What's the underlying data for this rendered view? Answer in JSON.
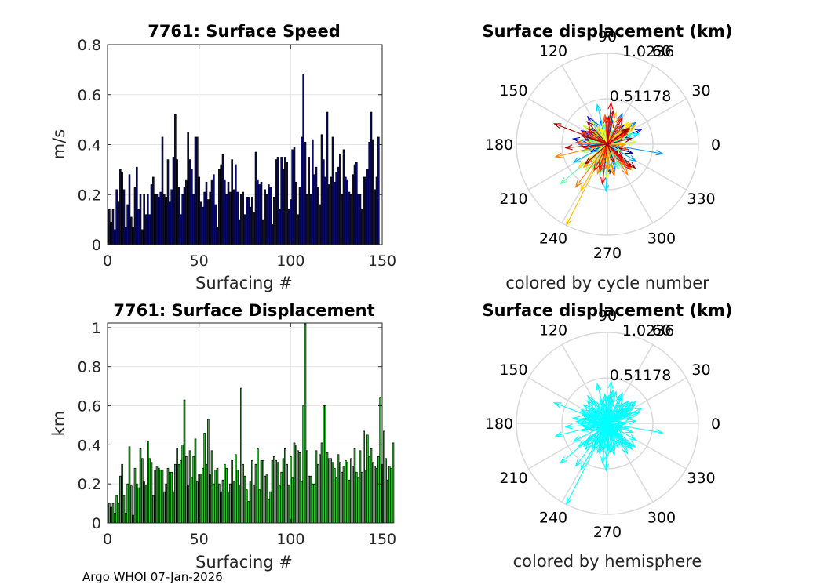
{
  "chart_data": [
    {
      "type": "bar",
      "title": "7761: Surface Speed",
      "xlabel": "Surfacing #",
      "ylabel": "m/s",
      "xlim": [
        0,
        150
      ],
      "ylim": [
        0,
        0.8
      ],
      "xticks": [
        "0",
        "50",
        "100",
        "150"
      ],
      "yticks": [
        "0",
        "0.2",
        "0.4",
        "0.6",
        "0.8"
      ],
      "grid": true,
      "bar_color": "#0a0a78",
      "values": [
        0.14,
        0.09,
        0.14,
        0.06,
        0.22,
        0.17,
        0.3,
        0.29,
        0.22,
        0.07,
        0.16,
        0.28,
        0.11,
        0.07,
        0.23,
        0.31,
        0.14,
        0.2,
        0.06,
        0.2,
        0.12,
        0.2,
        0.12,
        0.24,
        0.27,
        0.2,
        0.2,
        0.19,
        0.21,
        0.43,
        0.2,
        0.19,
        0.34,
        0.17,
        0.22,
        0.35,
        0.52,
        0.34,
        0.23,
        0.12,
        0.2,
        0.23,
        0.26,
        0.45,
        0.34,
        0.3,
        0.2,
        0.43,
        0.43,
        0.27,
        0.17,
        0.15,
        0.21,
        0.25,
        0.18,
        0.21,
        0.26,
        0.28,
        0.16,
        0.07,
        0.3,
        0.32,
        0.36,
        0.26,
        0.2,
        0.25,
        0.21,
        0.34,
        0.22,
        0.32,
        0.21,
        0.1,
        0.2,
        0.21,
        0.12,
        0.19,
        0.19,
        0.15,
        0.19,
        0.13,
        0.37,
        0.26,
        0.24,
        0.25,
        0.1,
        0.22,
        0.2,
        0.24,
        0.23,
        0.08,
        0.19,
        0.34,
        0.35,
        0.14,
        0.35,
        0.3,
        0.35,
        0.33,
        0.14,
        0.18,
        0.38,
        0.39,
        0.25,
        0.12,
        0.23,
        0.43,
        0.68,
        0.41,
        0.2,
        0.35,
        0.2,
        0.42,
        0.28,
        0.31,
        0.23,
        0.16,
        0.44,
        0.34,
        0.27,
        0.53,
        0.24,
        0.27,
        0.43,
        0.25,
        0.29,
        0.31,
        0.36,
        0.2,
        0.38,
        0.27,
        0.26,
        0.21,
        0.2,
        0.28,
        0.32,
        0.33,
        0.2,
        0.2,
        0.14,
        0.27,
        0.27,
        0.3,
        0.41,
        0.53,
        0.42,
        0.22,
        0.27,
        0.43
      ]
    },
    {
      "type": "polar-vector",
      "title": "Surface displacement (km)",
      "rlim": [
        0,
        1.0236
      ],
      "rticks": [
        "0.51178",
        "1.0236"
      ],
      "angle_ticks": [
        "0",
        "30",
        "60",
        "90",
        "120",
        "150",
        "180",
        "210",
        "240",
        "270",
        "300",
        "330"
      ],
      "caption": "colored by cycle number",
      "colormap": "jet"
    },
    {
      "type": "bar",
      "title": "7761: Surface Displacement",
      "xlabel": "Surfacing #",
      "ylabel": "km",
      "xlim": [
        0,
        150
      ],
      "ylim": [
        0,
        1.0236
      ],
      "xticks": [
        "0",
        "50",
        "100",
        "150"
      ],
      "yticks": [
        "0",
        "0.2",
        "0.4",
        "0.6",
        "0.8",
        "1"
      ],
      "grid": true,
      "bar_color": "#33cc33",
      "values": [
        0.1,
        0.08,
        0.1,
        0.05,
        0.14,
        0.1,
        0.24,
        0.3,
        0.14,
        0.05,
        0.2,
        0.39,
        0.19,
        0.04,
        0.28,
        0.2,
        0.18,
        0.38,
        0.33,
        0.21,
        0.19,
        0.42,
        0.33,
        0.31,
        0.14,
        0.27,
        0.29,
        0.28,
        0.27,
        0.27,
        0.16,
        0.2,
        0.28,
        0.26,
        0.26,
        0.16,
        0.3,
        0.38,
        0.3,
        0.32,
        0.4,
        0.63,
        0.34,
        0.19,
        0.37,
        0.23,
        0.34,
        0.43,
        0.21,
        0.25,
        0.25,
        0.28,
        0.46,
        0.3,
        0.53,
        0.25,
        0.37,
        0.2,
        0.27,
        0.28,
        0.2,
        0.16,
        0.22,
        0.3,
        0.28,
        0.16,
        0.2,
        0.32,
        0.21,
        0.35,
        0.27,
        0.19,
        0.69,
        0.3,
        0.24,
        0.17,
        0.11,
        0.21,
        0.32,
        0.19,
        0.3,
        0.38,
        0.17,
        0.32,
        0.32,
        0.24,
        0.25,
        0.12,
        0.16,
        0.32,
        0.34,
        0.32,
        0.31,
        0.19,
        0.26,
        0.33,
        0.38,
        0.3,
        0.19,
        0.34,
        0.23,
        0.41,
        0.4,
        0.37,
        0.36,
        0.21,
        0.6,
        1.02,
        0.37,
        0.24,
        0.24,
        0.2,
        0.2,
        0.37,
        0.3,
        0.35,
        0.41,
        0.6,
        0.6,
        0.36,
        0.33,
        0.33,
        0.31,
        0.28,
        0.23,
        0.35,
        0.31,
        0.26,
        0.29,
        0.32,
        0.31,
        0.22,
        0.33,
        0.29,
        0.38,
        0.26,
        0.23,
        0.37,
        0.26,
        0.47,
        0.27,
        0.45,
        0.34,
        0.38,
        0.31,
        0.29,
        0.28,
        0.34,
        0.64,
        0.3,
        0.47,
        0.33,
        0.22,
        0.29,
        0.28,
        0.41
      ]
    },
    {
      "type": "polar-vector",
      "title": "Surface displacement (km)",
      "rlim": [
        0,
        1.0236
      ],
      "rticks": [
        "0.51178",
        "1.0236"
      ],
      "angle_ticks": [
        "0",
        "30",
        "60",
        "90",
        "120",
        "150",
        "180",
        "210",
        "240",
        "270",
        "300",
        "330"
      ],
      "caption": "colored by hemisphere",
      "arrow_color": "#00ffff"
    }
  ],
  "footer": "Argo WHOI 07-Jan-2026"
}
